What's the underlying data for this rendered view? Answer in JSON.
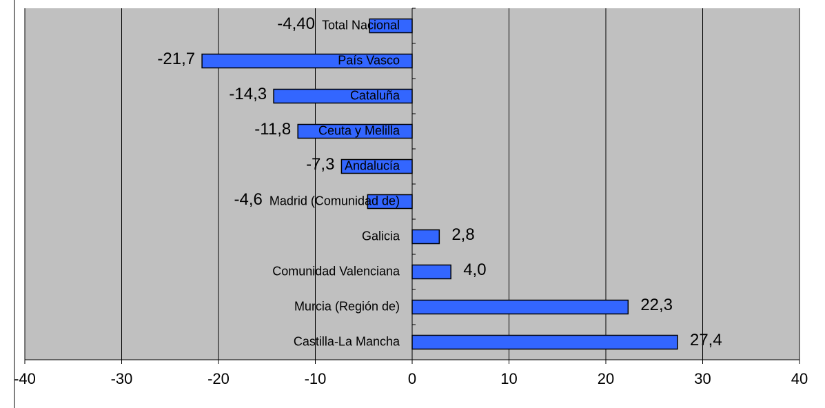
{
  "chart_data": {
    "type": "hbar",
    "categories": [
      "Total Nacional",
      "País Vasco",
      "Cataluña",
      "Ceuta y Melilla",
      "Andalucía",
      "Madrid (Comunidad de)",
      "Galicia",
      "Comunidad Valenciana",
      "Murcia (Región de)",
      "Castilla-La Mancha"
    ],
    "values": [
      -4.4,
      -21.7,
      -14.3,
      -11.8,
      -7.3,
      -4.6,
      2.8,
      4.0,
      22.3,
      27.4
    ],
    "value_labels": [
      "-4,40",
      "-21,7",
      "-14,3",
      "-11,8",
      "-7,3",
      "-4,6",
      "2,8",
      "4,0",
      "22,3",
      "27,4"
    ],
    "color": "#3366ff",
    "xlim": [
      -40,
      40
    ],
    "xticks": [
      -40,
      -30,
      -20,
      -10,
      0,
      10,
      20,
      30,
      40
    ],
    "grid": true
  }
}
